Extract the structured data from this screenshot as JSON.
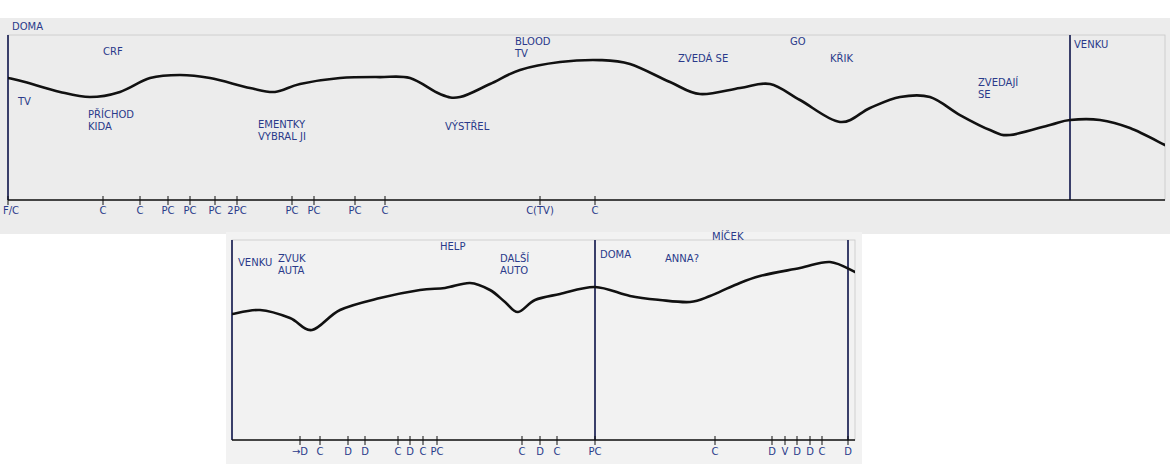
{
  "chart_data": [
    {
      "type": "line",
      "xlim": [
        0,
        115.7
      ],
      "ylim": [
        0,
        100
      ],
      "xticks": [
        {
          "value": 0,
          "label": "F/C"
        },
        {
          "value": 9.5,
          "label": "C"
        },
        {
          "value": 13.2,
          "label": "C"
        },
        {
          "value": 16,
          "label": "PC"
        },
        {
          "value": 18.2,
          "label": "PC"
        },
        {
          "value": 20.7,
          "label": "PC"
        },
        {
          "value": 22.9,
          "label": "2PC"
        },
        {
          "value": 28.4,
          "label": "PC"
        },
        {
          "value": 30.6,
          "label": "PC"
        },
        {
          "value": 34.7,
          "label": "PC"
        },
        {
          "value": 37.7,
          "label": "C"
        },
        {
          "value": 53.2,
          "label": "C(TV)"
        },
        {
          "value": 58.7,
          "label": "C"
        }
      ],
      "yticks": [],
      "tick_labels": "x",
      "series": [
        {
          "color": "#111111",
          "x": [
            0,
            1.7,
            5.2,
            8.2,
            11.2,
            14.2,
            17.2,
            20.2,
            24.2,
            26.7,
            29.2,
            33.2,
            37.2,
            40.2,
            43.2,
            45.2,
            48.2,
            51.2,
            55.2,
            59.2,
            62.2,
            66.2,
            69.2,
            73.2,
            76.2,
            79.2,
            83.2,
            86.2,
            89.2,
            92.2,
            95.2,
            98.2,
            100.2,
            104.2,
            106.2,
            109.2,
            112.2,
            115.7
          ],
          "values": [
            74,
            71.5,
            65.5,
            62.4,
            65.5,
            73.9,
            75.8,
            73.9,
            67.9,
            65.5,
            70.3,
            73.9,
            74.5,
            73.9,
            64.2,
            62.4,
            70.3,
            78.8,
            83.6,
            84.8,
            82.4,
            71.5,
            64.2,
            67.9,
            70.3,
            60.6,
            47.3,
            55.8,
            62.4,
            62.4,
            51.5,
            42.4,
            39.4,
            45.5,
            48.5,
            48.5,
            43.6,
            33.3
          ]
        }
      ],
      "vlines": [
        0,
        106.2
      ],
      "annotations": [
        {
          "text": [
            "DOMA"
          ],
          "x": 0.4,
          "y": 103
        },
        {
          "text": [
            "TV"
          ],
          "x": 1,
          "y": 57.6
        },
        {
          "text": [
            "PŘÍCHOD",
            "KIDA"
          ],
          "x": 8,
          "y": 49.7
        },
        {
          "text": [
            "CRF"
          ],
          "x": 9.5,
          "y": 88
        },
        {
          "text": [
            "EMENTKY",
            "VYBRAL JI"
          ],
          "x": 25,
          "y": 43.6
        },
        {
          "text": [
            "VÝSTŘEL"
          ],
          "x": 43.7,
          "y": 42.4
        },
        {
          "text": [
            "BLOOD",
            "TV"
          ],
          "x": 50.7,
          "y": 94
        },
        {
          "text": [
            "ZVEDÁ SE"
          ],
          "x": 67,
          "y": 83.6
        },
        {
          "text": [
            "GO"
          ],
          "x": 78.2,
          "y": 94
        },
        {
          "text": [
            "KŘIK"
          ],
          "x": 82.2,
          "y": 83.6
        },
        {
          "text": [
            "ZVEDAJÍ",
            "SE"
          ],
          "x": 97,
          "y": 69
        },
        {
          "text": [
            "VENKU"
          ],
          "x": 106.6,
          "y": 92
        }
      ]
    },
    {
      "type": "line",
      "xlim": [
        0,
        62.3
      ],
      "ylim": [
        0,
        100
      ],
      "xticks": [
        {
          "value": 6.8,
          "label": "→D"
        },
        {
          "value": 8.8,
          "label": "C"
        },
        {
          "value": 11.6,
          "label": "D"
        },
        {
          "value": 13.3,
          "label": "D"
        },
        {
          "value": 16.6,
          "label": "C"
        },
        {
          "value": 17.8,
          "label": "D"
        },
        {
          "value": 19.1,
          "label": "C"
        },
        {
          "value": 20.5,
          "label": "PC"
        },
        {
          "value": 29,
          "label": "C"
        },
        {
          "value": 30.8,
          "label": "D"
        },
        {
          "value": 32.5,
          "label": "C"
        },
        {
          "value": 36.3,
          "label": "PC"
        },
        {
          "value": 48.3,
          "label": "C"
        },
        {
          "value": 54,
          "label": "D"
        },
        {
          "value": 55.3,
          "label": "V"
        },
        {
          "value": 56.5,
          "label": "D"
        },
        {
          "value": 57.8,
          "label": "D"
        },
        {
          "value": 59,
          "label": "C"
        },
        {
          "value": 61.6,
          "label": "D"
        }
      ],
      "yticks": [],
      "tick_labels": "x",
      "series": [
        {
          "color": "#111111",
          "x": [
            0,
            2.8,
            5.8,
            8,
            10.8,
            14.8,
            18.8,
            21.3,
            23.8,
            25.8,
            27.3,
            28.6,
            30.3,
            32.8,
            36.3,
            39.8,
            42.8,
            45.8,
            47.8,
            50.3,
            52.8,
            56.8,
            59.8,
            62.3
          ],
          "values": [
            63,
            65,
            61,
            55,
            65,
            71,
            75,
            76,
            78.5,
            75,
            69,
            64,
            70,
            73,
            76.5,
            72,
            70,
            69,
            72,
            77.5,
            82,
            86,
            89,
            84
          ]
        }
      ],
      "vlines": [
        0,
        36.3,
        61.6
      ],
      "annotations": [
        {
          "text": [
            "VENKU"
          ],
          "x": 0.6,
          "y": 87
        },
        {
          "text": [
            "ZVUK",
            "AUTA"
          ],
          "x": 4.6,
          "y": 89
        },
        {
          "text": [
            "HELP"
          ],
          "x": 20.8,
          "y": 95
        },
        {
          "text": [
            "DALŠÍ",
            "AUTO"
          ],
          "x": 26.8,
          "y": 89
        },
        {
          "text": [
            "DOMA"
          ],
          "x": 36.8,
          "y": 91
        },
        {
          "text": [
            "ANNA?"
          ],
          "x": 43.3,
          "y": 89
        },
        {
          "text": [
            "MÍČEK"
          ],
          "x": 48,
          "y": 100
        }
      ]
    }
  ]
}
